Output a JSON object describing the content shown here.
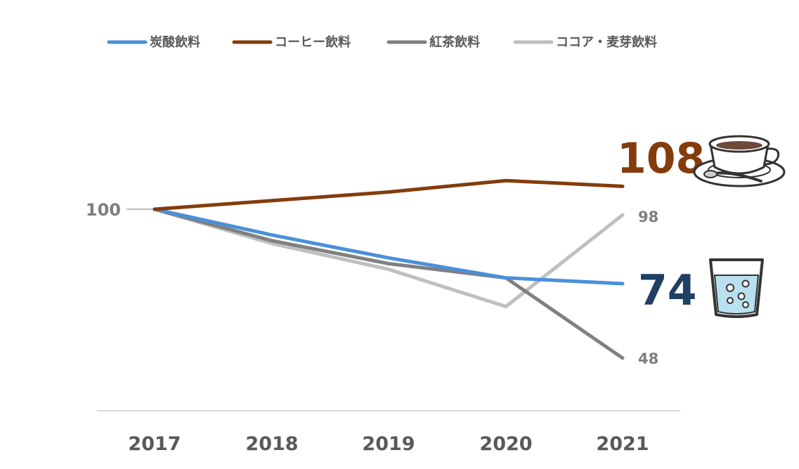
{
  "chart_data": {
    "type": "line",
    "categories": [
      "2017",
      "2018",
      "2019",
      "2020",
      "2021"
    ],
    "series": [
      {
        "name": "炭酸飲料",
        "color": "#4a90d9",
        "values": [
          100,
          91,
          83,
          76,
          74
        ]
      },
      {
        "name": "コーヒー飲料",
        "color": "#843c0c",
        "values": [
          100,
          103,
          106,
          110,
          108
        ]
      },
      {
        "name": "紅茶飲料",
        "color": "#808080",
        "values": [
          100,
          89,
          81,
          76,
          48
        ]
      },
      {
        "name": "ココア・麦芽飲料",
        "color": "#bfbfbf",
        "values": [
          100,
          88,
          79,
          66,
          98
        ]
      }
    ],
    "start_label": "100",
    "end_labels": [
      "74",
      "108",
      "48",
      "98"
    ],
    "legend_position": "top",
    "grid": false,
    "ylim": [
      20,
      130
    ]
  },
  "icons": {
    "coffee": "coffee-cup-icon",
    "soda": "soda-glass-icon"
  }
}
